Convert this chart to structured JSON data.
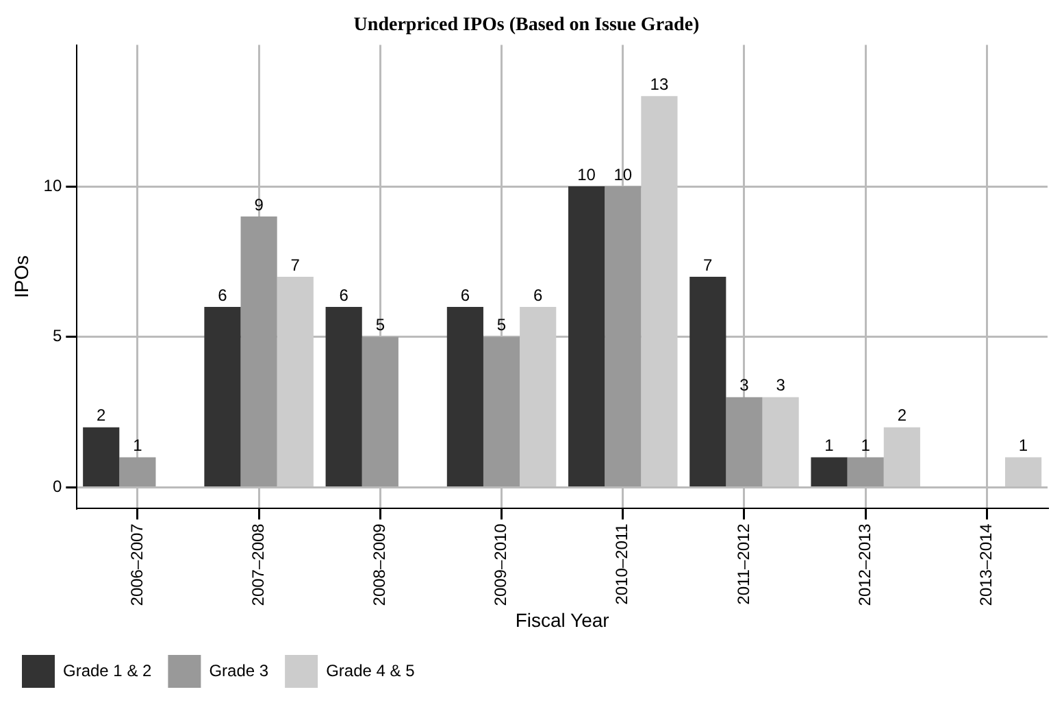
{
  "chart_data": {
    "type": "bar",
    "title": "Underpriced IPOs (Based on Issue Grade)",
    "xlabel": "Fiscal Year",
    "ylabel": "IPOs",
    "categories": [
      "2006–2007",
      "2007–2008",
      "2008–2009",
      "2009–2010",
      "2010–2011",
      "2011–2012",
      "2012–2013",
      "2013–2014"
    ],
    "series": [
      {
        "name": "Grade 1 & 2",
        "color": "#333333",
        "values": [
          2,
          6,
          6,
          6,
          10,
          7,
          1,
          0
        ],
        "value_labels": [
          "2",
          "6",
          "6",
          "6",
          "10",
          "7",
          "1",
          null
        ]
      },
      {
        "name": "Grade 3",
        "color": "#999999",
        "values": [
          1,
          9,
          5,
          5,
          10,
          3,
          1,
          0
        ],
        "value_labels": [
          "1",
          "9",
          "5",
          "5",
          "10",
          "3",
          "1",
          null
        ]
      },
      {
        "name": "Grade 4 & 5",
        "color": "#cccccc",
        "values": [
          0,
          7,
          0,
          6,
          13,
          3,
          2,
          1
        ],
        "value_labels": [
          null,
          "7",
          null,
          "6",
          "13",
          "3",
          "2",
          "1"
        ]
      }
    ],
    "ylim": [
      -0.7,
      14.7
    ],
    "yticks": [
      0,
      5,
      10
    ],
    "grid": true,
    "legend": "bottom left"
  }
}
